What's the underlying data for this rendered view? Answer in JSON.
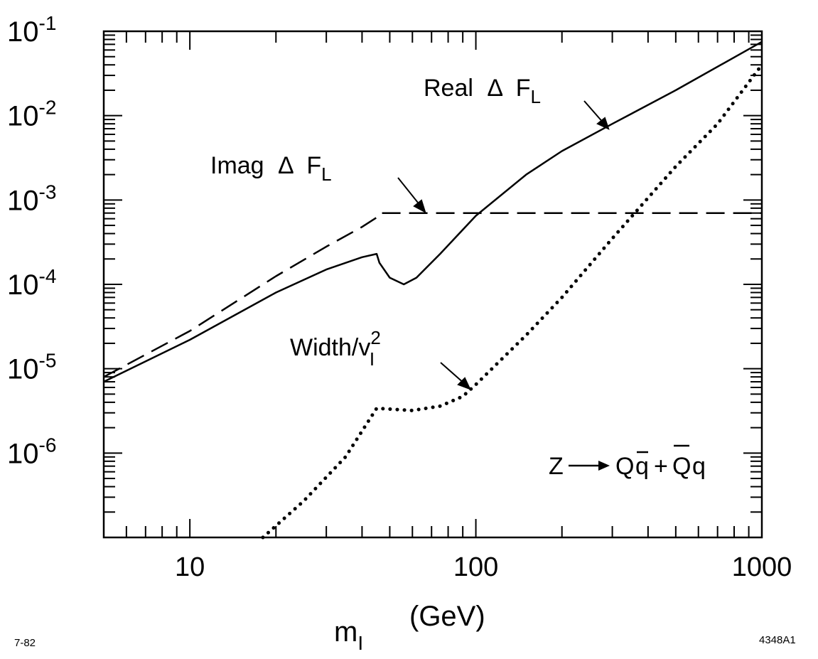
{
  "figure": {
    "xlabel": "m",
    "xlabel_sub": "I",
    "xlabel_unit": "(GeV)",
    "date_code": "7-82",
    "figure_id": "4348A1",
    "process_label": {
      "lhs": "Z",
      "rhs_part1": "Q",
      "rhs_part2": "q",
      "plus": "+",
      "rhs_part3": "Q",
      "rhs_part4": "q"
    }
  },
  "chart_data": {
    "type": "line",
    "x_scale": "log",
    "y_scale": "log",
    "xlim": [
      5,
      1000
    ],
    "ylim": [
      1e-07,
      0.1
    ],
    "x_ticks": [
      {
        "value": 10,
        "label": "10"
      },
      {
        "value": 100,
        "label": "100"
      },
      {
        "value": 1000,
        "label": "1000"
      }
    ],
    "y_ticks": [
      {
        "value": 0.1,
        "base": "10",
        "exp": "-1"
      },
      {
        "value": 0.01,
        "base": "10",
        "exp": "-2"
      },
      {
        "value": 0.001,
        "base": "10",
        "exp": "-3"
      },
      {
        "value": 0.0001,
        "base": "10",
        "exp": "-4"
      },
      {
        "value": 1e-05,
        "base": "10",
        "exp": "-5"
      },
      {
        "value": 1e-06,
        "base": "10",
        "exp": "-6"
      }
    ],
    "grid": false,
    "series": [
      {
        "name": "Real ΔF_L",
        "style": "solid",
        "points": [
          [
            5,
            7e-06
          ],
          [
            10,
            2.2e-05
          ],
          [
            20,
            8e-05
          ],
          [
            30,
            0.00015
          ],
          [
            40,
            0.00021
          ],
          [
            45,
            0.00023
          ],
          [
            46,
            0.00018
          ],
          [
            50,
            0.00012
          ],
          [
            56,
            0.0001
          ],
          [
            62,
            0.00012
          ],
          [
            75,
            0.00023
          ],
          [
            100,
            0.00065
          ],
          [
            150,
            0.002
          ],
          [
            200,
            0.0038
          ],
          [
            300,
            0.008
          ],
          [
            500,
            0.02
          ],
          [
            1000,
            0.075
          ]
        ],
        "label": {
          "text": "Real",
          "sym": "Δ",
          "main": "F",
          "sub": "L"
        }
      },
      {
        "name": "Imag ΔF_L",
        "style": "dashed",
        "points": [
          [
            5,
            8e-06
          ],
          [
            10,
            2.8e-05
          ],
          [
            20,
            0.000125
          ],
          [
            30,
            0.00028
          ],
          [
            40,
            0.00048
          ],
          [
            45,
            0.00062
          ],
          [
            46,
            0.0007
          ],
          [
            100,
            0.0007
          ],
          [
            1000,
            0.0007
          ]
        ],
        "label": {
          "text": "Imag",
          "sym": "Δ",
          "main": "F",
          "sub": "L"
        }
      },
      {
        "name": "Width/v_I^2",
        "style": "dotted",
        "points": [
          [
            18,
            1e-07
          ],
          [
            25,
            2.7e-07
          ],
          [
            35,
            9e-07
          ],
          [
            45,
            3.4e-06
          ],
          [
            60,
            3.2e-06
          ],
          [
            75,
            3.6e-06
          ],
          [
            90,
            4.7e-06
          ],
          [
            100,
            6.5e-06
          ],
          [
            150,
            2.5e-05
          ],
          [
            200,
            7e-05
          ],
          [
            300,
            0.00035
          ],
          [
            500,
            0.0025
          ],
          [
            700,
            0.008
          ],
          [
            1000,
            0.04
          ]
        ],
        "label": {
          "text": "Width/v",
          "sup": "2",
          "sub": "I"
        }
      }
    ]
  }
}
